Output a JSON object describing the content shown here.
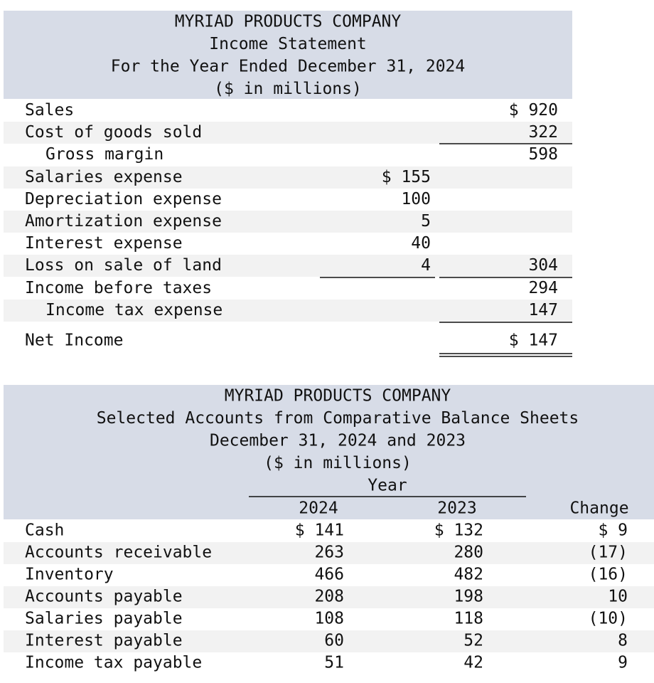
{
  "income_statement": {
    "title": [
      "MYRIAD PRODUCTS COMPANY",
      "Income Statement",
      "For the Year Ended December 31, 2024",
      "($ in millions)"
    ],
    "rows": [
      {
        "label": "Sales",
        "total": "$ 920"
      },
      {
        "label": "Cost of goods sold",
        "total": "322"
      },
      {
        "label": "Gross margin",
        "total": "598"
      },
      {
        "label": "Salaries expense",
        "detail": "$ 155"
      },
      {
        "label": "Depreciation expense",
        "detail": "100"
      },
      {
        "label": "Amortization expense",
        "detail": "5"
      },
      {
        "label": "Interest expense",
        "detail": "40"
      },
      {
        "label": "Loss on sale of land",
        "detail": "4",
        "total": "304"
      },
      {
        "label": "Income before taxes",
        "total": "294"
      },
      {
        "label": "Income tax expense",
        "total": "147"
      },
      {
        "label": "Net Income",
        "total": "$ 147"
      }
    ]
  },
  "balance_sheet": {
    "title": [
      "MYRIAD PRODUCTS COMPANY",
      "Selected Accounts from Comparative Balance Sheets",
      "December 31, 2024 and 2023",
      "($ in millions)"
    ],
    "group_header": "Year",
    "columns": [
      "2024",
      "2023",
      "Change"
    ],
    "rows": [
      [
        "Cash",
        "$ 141",
        "$ 132",
        "$ 9"
      ],
      [
        "Accounts receivable",
        "263",
        "280",
        "(17)"
      ],
      [
        "Inventory",
        "466",
        "482",
        "(16)"
      ],
      [
        "Accounts payable",
        "208",
        "198",
        "10"
      ],
      [
        "Salaries payable",
        "108",
        "118",
        "(10)"
      ],
      [
        "Interest payable",
        "60",
        "52",
        "8"
      ],
      [
        "Income tax payable",
        "51",
        "42",
        "9"
      ]
    ]
  }
}
